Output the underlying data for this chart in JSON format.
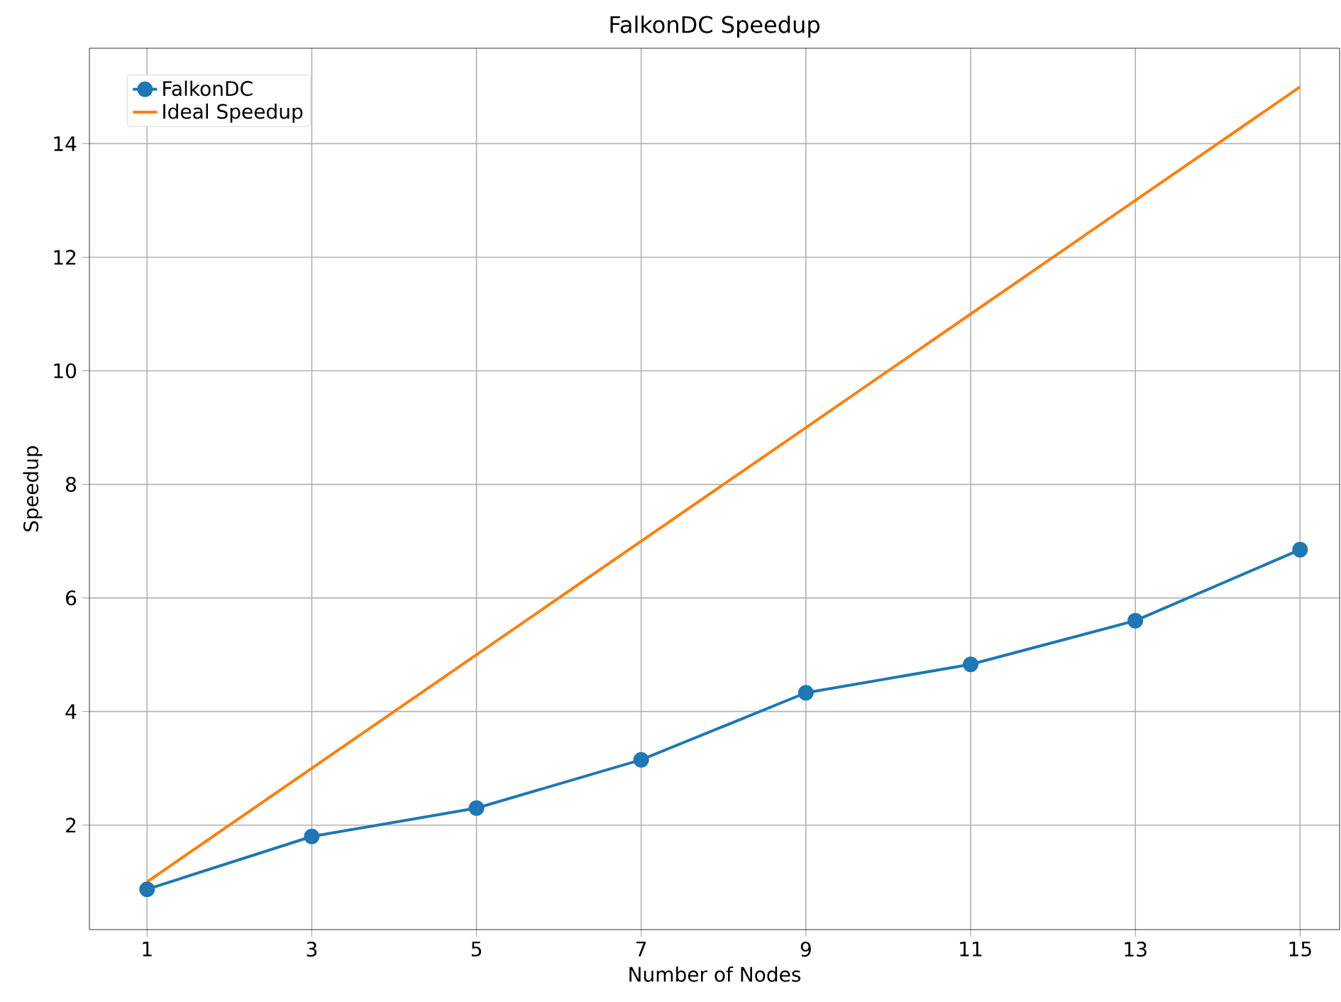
{
  "chart_data": {
    "type": "line",
    "title": "FalkonDC Speedup",
    "xlabel": "Number of Nodes",
    "ylabel": "Speedup",
    "x": [
      1,
      3,
      5,
      7,
      9,
      11,
      13,
      15
    ],
    "series": [
      {
        "name": "FalkonDC",
        "color": "#1f77b4",
        "marker": "circle",
        "values": [
          0.87,
          1.8,
          2.3,
          3.15,
          4.33,
          4.83,
          5.6,
          6.85
        ]
      },
      {
        "name": "Ideal Speedup",
        "color": "#ff7f0e",
        "marker": "none",
        "values": [
          1,
          3,
          5,
          7,
          9,
          11,
          13,
          15
        ]
      }
    ],
    "xlim": [
      0.3,
      15.48
    ],
    "ylim": [
      0.16,
      15.68
    ],
    "xticks": [
      1,
      3,
      5,
      7,
      9,
      11,
      13,
      15
    ],
    "yticks": [
      2,
      4,
      6,
      8,
      10,
      12,
      14
    ],
    "grid": true,
    "legend": "top left",
    "line_style": "solid"
  }
}
